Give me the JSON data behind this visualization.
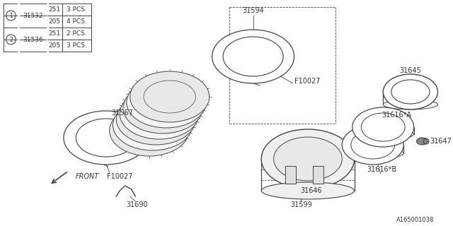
{
  "bg_color": "#ffffff",
  "line_color": "#444444",
  "text_color": "#333333",
  "fig_width": 6.4,
  "fig_height": 3.2,
  "dpi": 100,
  "table_rows": [
    {
      "sym": "1",
      "part": "31532",
      "num": "251",
      "qty": "3 PCS."
    },
    {
      "sym": "",
      "part": "",
      "num": "205",
      "qty": "4 PCS."
    },
    {
      "sym": "2",
      "part": "31536",
      "num": "251",
      "qty": "2 PCS."
    },
    {
      "sym": "",
      "part": "",
      "num": "205",
      "qty": "3 PCS."
    }
  ],
  "footer_text": "A165001038"
}
